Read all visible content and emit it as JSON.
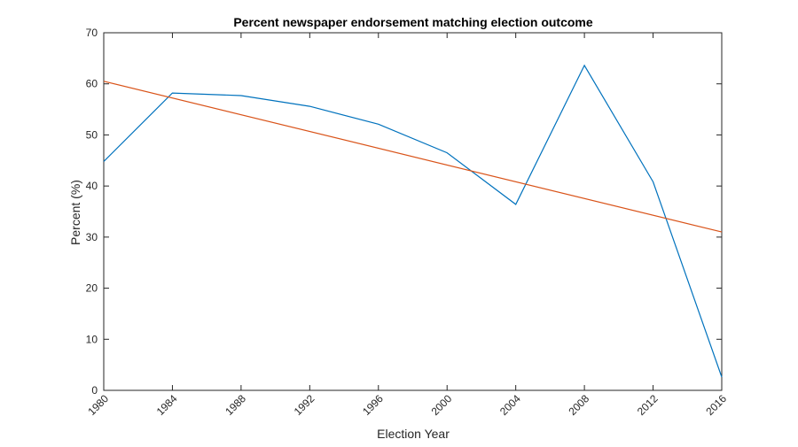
{
  "chart_data": {
    "type": "line",
    "title": "Percent newspaper endorsement matching election outcome",
    "xlabel": "Election Year",
    "ylabel": "Percent (%)",
    "x": [
      1980,
      1984,
      1988,
      1992,
      1996,
      2000,
      2004,
      2008,
      2012,
      2016
    ],
    "x_tick_labels": [
      "1980",
      "1984",
      "1988",
      "1992",
      "1996",
      "2000",
      "2004",
      "2008",
      "2012",
      "2016"
    ],
    "y_ticks": [
      0,
      10,
      20,
      30,
      40,
      50,
      60,
      70
    ],
    "y_tick_labels": [
      "0",
      "10",
      "20",
      "30",
      "40",
      "50",
      "60",
      "70"
    ],
    "xlim": [
      1980,
      2016
    ],
    "ylim": [
      0,
      70
    ],
    "grid": false,
    "series": [
      {
        "color": "#0072BD",
        "x": [
          1980,
          1984,
          1988,
          1992,
          1996,
          2000,
          2004,
          2008,
          2012,
          2016
        ],
        "values": [
          44.8,
          58.2,
          57.7,
          55.6,
          52.1,
          46.5,
          36.4,
          63.6,
          40.8,
          2.6
        ]
      },
      {
        "color": "#D95319",
        "x": [
          1980,
          2016
        ],
        "values": [
          60.5,
          31.0
        ]
      }
    ]
  }
}
